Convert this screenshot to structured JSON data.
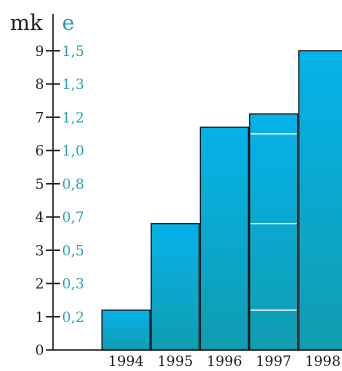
{
  "chart_data": {
    "type": "bar",
    "categories": [
      "1994",
      "1995",
      "1996",
      "1997",
      "1998"
    ],
    "values": [
      1.2,
      3.8,
      6.7,
      7.1,
      9.0
    ],
    "ylim": [
      0,
      9
    ],
    "left_axis": {
      "unit": "mk",
      "ticks": [
        0,
        1,
        2,
        3,
        4,
        5,
        6,
        7,
        8,
        9
      ],
      "labels": [
        "0",
        "1",
        "2",
        "3",
        "4",
        "5",
        "6",
        "7",
        "8",
        "9"
      ]
    },
    "right_axis": {
      "unit": "e",
      "ticks": [
        1,
        2,
        3,
        4,
        5,
        6,
        7,
        8,
        9
      ],
      "labels": [
        "0,2",
        "0,3",
        "0,5",
        "0,7",
        "0,8",
        "1,0",
        "1,2",
        "1,3",
        "1,5"
      ]
    },
    "segment_lines": [
      {
        "category": "1997",
        "values": [
          1.2,
          3.8,
          6.5
        ]
      }
    ],
    "colors": {
      "bar_top": "#05b2ea",
      "bar_bottom": "#109db0",
      "bar_outline": "#1a1a1a",
      "right_axis": "#1f9fb0",
      "axis": "#1a1a1a"
    }
  }
}
